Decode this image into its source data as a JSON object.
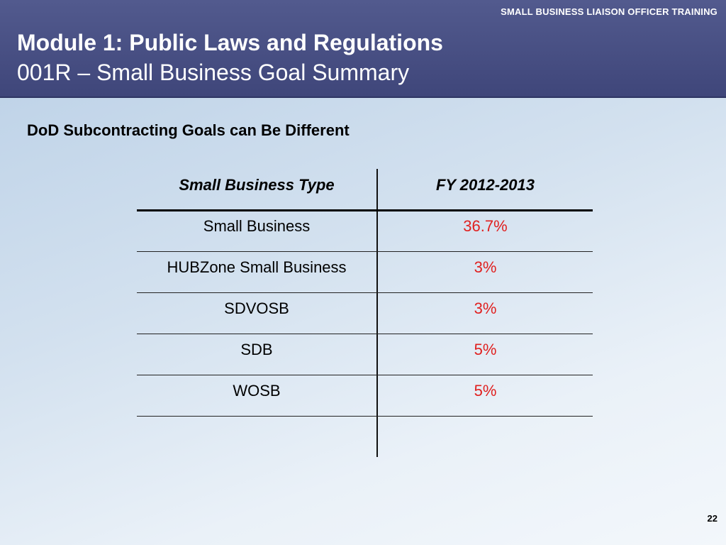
{
  "header": {
    "top_label": "SMALL BUSINESS LIAISON OFFICER TRAINING",
    "title": "Module 1: Public Laws and Regulations",
    "subtitle": "001R – Small Business Goal Summary"
  },
  "subheading": "DoD Subcontracting Goals can Be Different",
  "table": {
    "columns": [
      "Small Business Type",
      "FY 2012-2013"
    ],
    "rows": [
      {
        "type": "Small Business",
        "goal": "36.7%"
      },
      {
        "type": "HUBZone Small Business",
        "goal": "3%"
      },
      {
        "type": "SDVOSB",
        "goal": "3%"
      },
      {
        "type": "SDB",
        "goal": "5%"
      },
      {
        "type": "WOSB",
        "goal": "5%"
      }
    ]
  },
  "colors": {
    "header_bg": "#4a5186",
    "goal_value": "#e0201f"
  },
  "page_number": "22"
}
